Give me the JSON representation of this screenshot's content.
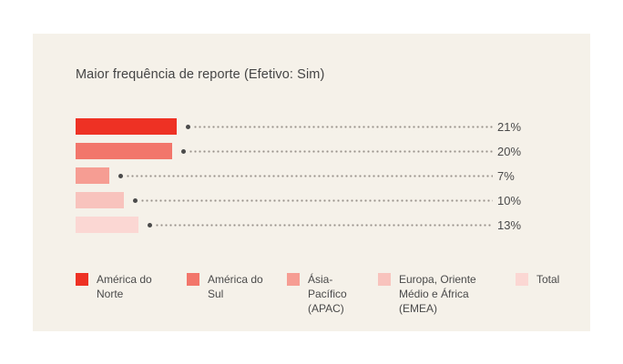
{
  "page": {
    "background": "#ffffff",
    "panel_background": "#f5f1e9"
  },
  "colors": {
    "title_text": "#454545",
    "value_text": "#4a4a4a",
    "legend_text": "#4a4a4a",
    "leader_dot": "#4b4b4b",
    "leader_line": "#98918a"
  },
  "chart_data": {
    "type": "bar",
    "orientation": "horizontal",
    "title": "Maior frequência de reporte (Efetivo: Sim)",
    "categories": [
      "América do Norte",
      "América do Sul",
      "Ásia-Pacífico (APAC)",
      "Europa, Oriente Médio e África (EMEA)",
      "Total"
    ],
    "values": [
      21,
      20,
      7,
      10,
      13
    ],
    "value_labels": [
      "21%",
      "20%",
      "7%",
      "10%",
      "13%"
    ],
    "value_unit": "%",
    "series_colors": [
      "#ee3124",
      "#f2766b",
      "#f69d93",
      "#f8c3bd",
      "#fbd7d3"
    ],
    "grid": false,
    "legend_position": "bottom"
  },
  "legend": {
    "items": [
      {
        "label": "América do Norte",
        "color": "#ee3124"
      },
      {
        "label": "América do Sul",
        "color": "#f2766b"
      },
      {
        "label": "Ásia-Pacífico (APAC)",
        "color": "#f69d93"
      },
      {
        "label": "Europa, Oriente Médio e África (EMEA)",
        "color": "#f8c3bd"
      },
      {
        "label": "Total",
        "color": "#fbd7d3"
      }
    ]
  }
}
